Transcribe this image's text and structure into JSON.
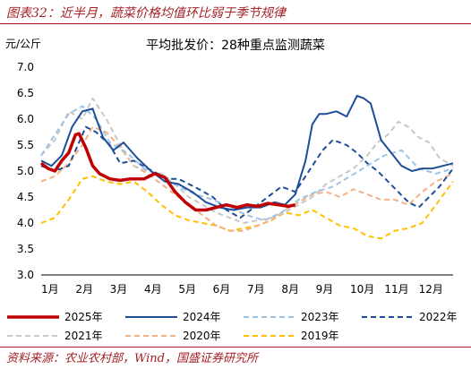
{
  "header": {
    "figure_title": "图表32：近半月，蔬菜价格均值环比弱于季节规律"
  },
  "footer": {
    "source": "资料来源：农业农村部，Wind，国盛证券研究所"
  },
  "chart_data": {
    "type": "line",
    "title": "平均批发价：28种重点监测蔬菜",
    "ylabel": "元/公斤",
    "xlabel": "",
    "ylim": [
      3.0,
      7.0
    ],
    "xlim": [
      0,
      12
    ],
    "yticks": [
      3.0,
      3.5,
      4.0,
      4.5,
      5.0,
      5.5,
      6.0,
      6.5,
      7.0
    ],
    "ytick_labels": [
      "3.0",
      "3.5",
      "4.0",
      "4.5",
      "5.0",
      "5.5",
      "6.0",
      "6.5",
      "7.0"
    ],
    "categories": [
      "1月",
      "2月",
      "3月",
      "4月",
      "5月",
      "6月",
      "7月",
      "8月",
      "9月",
      "10月",
      "11月",
      "12月"
    ],
    "grid": false,
    "legend_position": "bottom",
    "series": [
      {
        "name": "2025年",
        "color": "#c00000",
        "dash": "solid",
        "width": 3.5,
        "x": [
          0,
          0.2,
          0.4,
          0.6,
          0.8,
          1.0,
          1.1,
          1.3,
          1.5,
          1.7,
          2.0,
          2.3,
          2.6,
          3.0,
          3.3,
          3.6,
          3.9,
          4.2,
          4.5,
          4.8,
          5.1,
          5.4,
          5.7,
          6.0,
          6.3,
          6.6,
          6.9,
          7.2,
          7.4
        ],
        "y": [
          5.15,
          5.05,
          5.0,
          5.2,
          5.35,
          5.7,
          5.72,
          5.45,
          5.1,
          4.95,
          4.85,
          4.82,
          4.85,
          4.85,
          4.95,
          4.88,
          4.6,
          4.4,
          4.25,
          4.25,
          4.3,
          4.35,
          4.3,
          4.35,
          4.32,
          4.38,
          4.35,
          4.32,
          4.35
        ]
      },
      {
        "name": "2024年",
        "color": "#1f4e99",
        "dash": "solid",
        "width": 2,
        "x": [
          0,
          0.3,
          0.6,
          0.9,
          1.2,
          1.5,
          1.8,
          2.1,
          2.4,
          2.8,
          3.2,
          3.6,
          4.0,
          4.4,
          4.8,
          5.2,
          5.6,
          6.0,
          6.4,
          6.8,
          7.1,
          7.4,
          7.7,
          7.9,
          8.1,
          8.3,
          8.6,
          8.9,
          9.2,
          9.4,
          9.6,
          9.9,
          10.2,
          10.5,
          10.8,
          11.1,
          11.4,
          11.7,
          12.0
        ],
        "y": [
          5.2,
          5.1,
          5.3,
          5.85,
          6.15,
          6.2,
          5.65,
          5.4,
          5.55,
          5.25,
          5.0,
          4.8,
          4.75,
          4.6,
          4.4,
          4.3,
          4.25,
          4.3,
          4.3,
          4.4,
          4.35,
          4.55,
          5.2,
          5.9,
          6.1,
          6.1,
          6.15,
          6.05,
          6.45,
          6.4,
          6.3,
          5.6,
          5.35,
          5.1,
          5.0,
          5.05,
          5.05,
          5.1,
          5.15
        ]
      },
      {
        "name": "2023年",
        "color": "#9dc3e6",
        "dash": "dash",
        "width": 2,
        "x": [
          0,
          0.4,
          0.8,
          1.2,
          1.6,
          2.0,
          2.5,
          3.0,
          3.5,
          4.0,
          4.5,
          5.0,
          5.5,
          6.0,
          6.5,
          7.0,
          7.5,
          8.0,
          8.5,
          9.0,
          9.5,
          10.0,
          10.5,
          11.0,
          11.5,
          12.0
        ],
        "y": [
          5.3,
          5.7,
          6.1,
          6.25,
          6.0,
          5.55,
          5.35,
          5.05,
          4.9,
          4.7,
          4.55,
          4.45,
          4.3,
          4.15,
          4.05,
          4.2,
          4.45,
          4.6,
          4.7,
          4.9,
          5.1,
          5.3,
          5.4,
          5.05,
          4.95,
          5.05
        ]
      },
      {
        "name": "2022年",
        "color": "#1f4e99",
        "dash": "dash",
        "width": 2,
        "x": [
          0,
          0.4,
          0.8,
          1.1,
          1.3,
          1.6,
          2.0,
          2.3,
          2.7,
          3.1,
          3.4,
          3.7,
          4.0,
          4.3,
          4.6,
          5.0,
          5.4,
          5.8,
          6.2,
          6.6,
          7.0,
          7.4,
          7.8,
          8.2,
          8.5,
          8.9,
          9.2,
          9.5,
          9.8,
          10.1,
          10.4,
          10.7,
          11.0,
          11.3,
          11.6,
          12.0
        ],
        "y": [
          5.1,
          5.0,
          5.1,
          5.55,
          5.85,
          5.75,
          5.5,
          5.15,
          5.2,
          5.05,
          4.95,
          4.85,
          4.85,
          4.75,
          4.65,
          4.5,
          4.25,
          4.1,
          4.3,
          4.5,
          4.7,
          4.6,
          5.0,
          5.4,
          5.6,
          5.5,
          5.35,
          5.15,
          5.0,
          4.8,
          4.6,
          4.4,
          4.3,
          4.5,
          4.7,
          5.05
        ]
      },
      {
        "name": "2021年",
        "color": "#c8c8c8",
        "dash": "dash",
        "width": 2,
        "x": [
          0,
          0.4,
          0.8,
          1.2,
          1.5,
          1.9,
          2.3,
          2.7,
          3.1,
          3.5,
          3.9,
          4.3,
          4.7,
          5.1,
          5.5,
          5.9,
          6.3,
          6.7,
          7.1,
          7.5,
          7.9,
          8.3,
          8.7,
          9.1,
          9.5,
          9.8,
          10.1,
          10.4,
          10.7,
          11.0,
          11.3,
          11.6,
          12.0
        ],
        "y": [
          5.3,
          5.6,
          6.15,
          6.0,
          6.4,
          6.0,
          5.5,
          5.1,
          5.0,
          4.95,
          4.75,
          4.5,
          4.35,
          4.2,
          4.1,
          4.0,
          4.05,
          4.1,
          4.2,
          4.35,
          4.5,
          4.75,
          4.9,
          5.05,
          5.3,
          5.55,
          5.7,
          5.95,
          5.85,
          5.65,
          5.55,
          5.25,
          5.1
        ]
      },
      {
        "name": "2020年",
        "color": "#f4b183",
        "dash": "dash",
        "width": 2,
        "x": [
          0,
          0.4,
          0.8,
          1.2,
          1.5,
          1.9,
          2.3,
          2.7,
          3.1,
          3.5,
          3.9,
          4.3,
          4.7,
          5.1,
          5.5,
          5.9,
          6.3,
          6.7,
          7.1,
          7.5,
          7.9,
          8.3,
          8.7,
          9.1,
          9.5,
          9.9,
          10.3,
          10.7,
          11.1,
          11.5,
          12.0
        ],
        "y": [
          4.8,
          4.9,
          5.15,
          5.5,
          5.85,
          5.75,
          5.45,
          5.1,
          4.95,
          4.75,
          4.55,
          4.35,
          4.15,
          3.95,
          3.85,
          3.85,
          3.95,
          4.05,
          4.25,
          4.4,
          4.55,
          4.6,
          4.5,
          4.65,
          4.55,
          4.45,
          4.45,
          4.35,
          4.6,
          4.8,
          4.95
        ]
      },
      {
        "name": "2019年",
        "color": "#ffc000",
        "dash": "dash",
        "width": 2,
        "x": [
          0,
          0.4,
          0.8,
          1.2,
          1.5,
          1.9,
          2.3,
          2.7,
          3.1,
          3.5,
          3.9,
          4.3,
          4.7,
          5.1,
          5.5,
          5.9,
          6.3,
          6.7,
          7.1,
          7.5,
          7.9,
          8.3,
          8.7,
          9.1,
          9.5,
          9.9,
          10.3,
          10.7,
          11.1,
          11.5,
          12.0
        ],
        "y": [
          4.0,
          4.1,
          4.45,
          4.85,
          4.9,
          4.8,
          4.75,
          4.8,
          4.6,
          4.35,
          4.15,
          4.05,
          4.0,
          3.95,
          3.85,
          3.9,
          3.95,
          4.05,
          4.2,
          4.15,
          4.25,
          4.1,
          3.95,
          3.9,
          3.75,
          3.7,
          3.85,
          3.9,
          4.0,
          4.35,
          4.8
        ]
      }
    ]
  }
}
